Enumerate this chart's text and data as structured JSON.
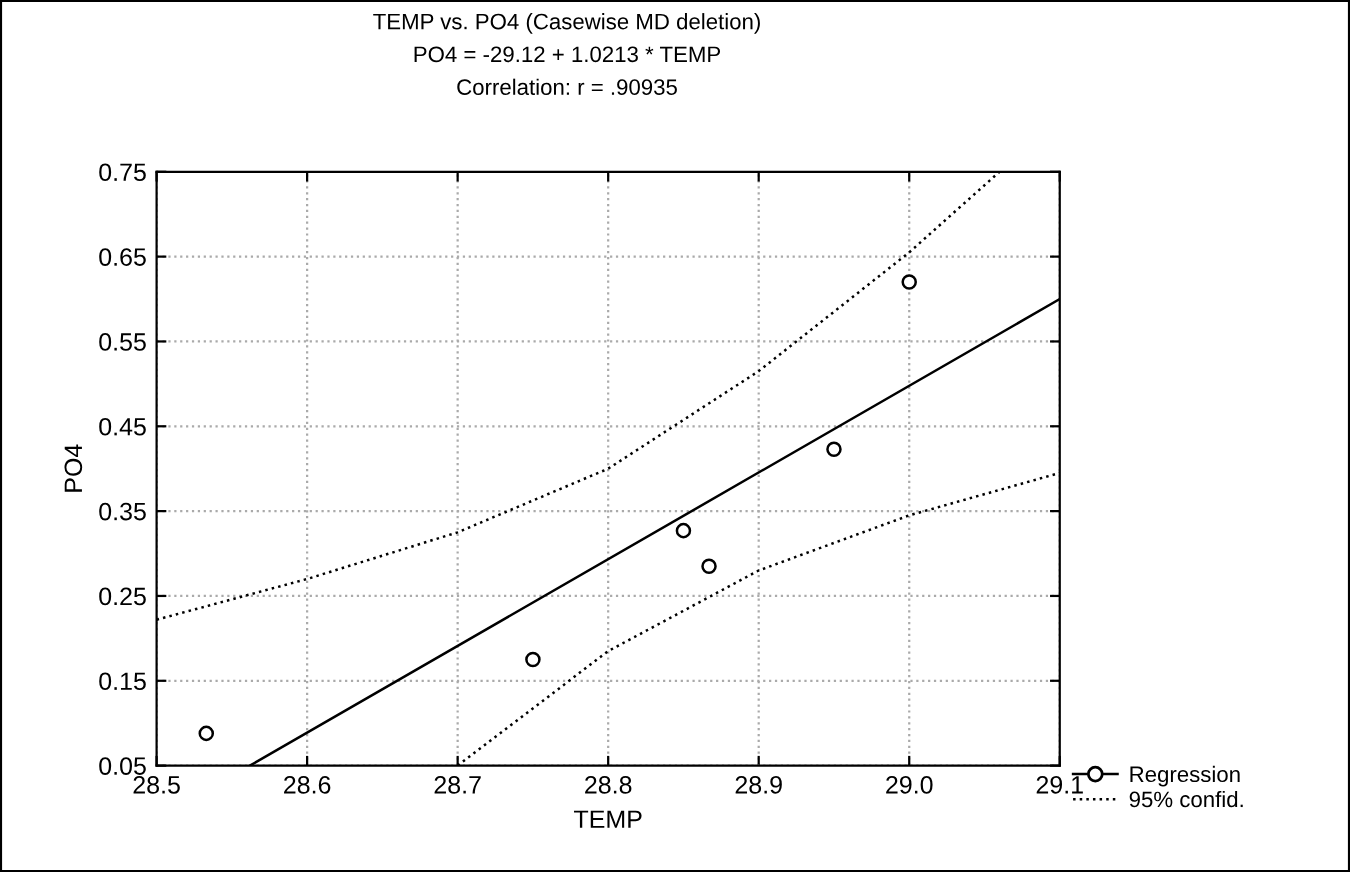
{
  "chart_data": {
    "type": "scatter",
    "title": "TEMP vs. PO4 (Casewise MD deletion)\nPO4 = -29.12 + 1.0213 * TEMP\nCorrelation: r = .90935",
    "xlabel": "TEMP",
    "ylabel": "PO4",
    "xlim": [
      28.5,
      29.1
    ],
    "ylim": [
      0.05,
      0.75
    ],
    "xticks": [
      {
        "value": 28.5,
        "label": "28.5"
      },
      {
        "value": 28.6,
        "label": "28.6"
      },
      {
        "value": 28.7,
        "label": "28.7"
      },
      {
        "value": 28.8,
        "label": "28.8"
      },
      {
        "value": 28.9,
        "label": "28.9"
      },
      {
        "value": 29.0,
        "label": "29.0"
      },
      {
        "value": 29.1,
        "label": "29.1"
      }
    ],
    "yticks": [
      0.05,
      0.15,
      0.25,
      0.35,
      0.45,
      0.55,
      0.65,
      0.75
    ],
    "grid": true,
    "legend": "bottom right",
    "series": [
      {
        "marker": "circle",
        "color": "#000000",
        "x": [
          28.533,
          28.75,
          28.85,
          28.867,
          28.95,
          29.0
        ],
        "values": [
          0.088,
          0.175,
          0.327,
          0.285,
          0.423,
          0.62
        ]
      },
      {
        "type": "line",
        "name": "Regression",
        "color": "#000000",
        "line_style": "solid",
        "x": [
          28.562,
          29.1
        ],
        "values": [
          0.05,
          0.6
        ]
      },
      {
        "type": "line",
        "name": "95% confid.",
        "color": "#000000",
        "line_style": "dotted",
        "x": [
          28.5,
          28.6,
          28.7,
          28.8,
          28.9,
          29.0,
          29.06
        ],
        "values": [
          0.222,
          0.27,
          0.325,
          0.4,
          0.515,
          0.655,
          0.75
        ]
      },
      {
        "type": "line",
        "color": "#000000",
        "line_style": "dotted",
        "x": [
          28.7,
          28.8,
          28.9,
          29.0,
          29.1
        ],
        "values": [
          0.05,
          0.185,
          0.28,
          0.345,
          0.395
        ]
      }
    ]
  }
}
